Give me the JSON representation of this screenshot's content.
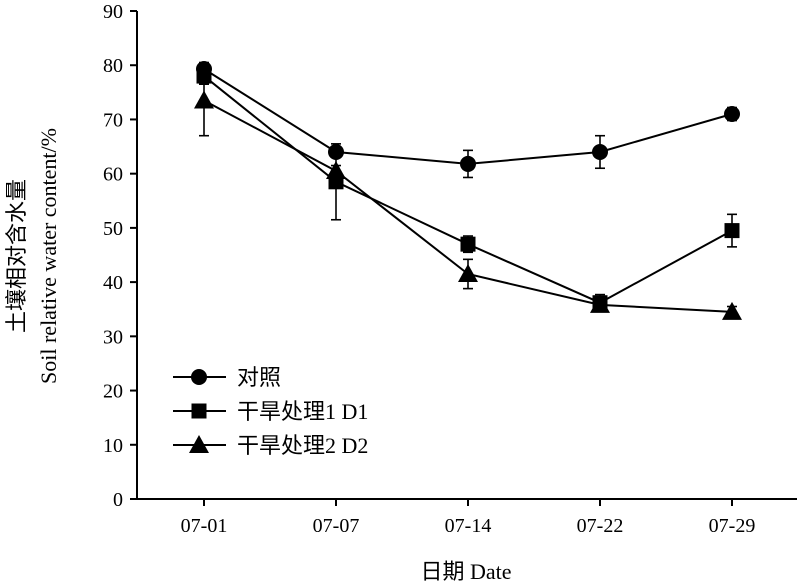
{
  "chart_data": {
    "type": "line",
    "xlabel": "日期 Date",
    "ylabel_line1": "土壤相对含水量",
    "ylabel_line2": "Soil relative water content/%",
    "ylim": [
      0,
      90
    ],
    "yticks": [
      0,
      10,
      20,
      30,
      40,
      50,
      60,
      70,
      80,
      90
    ],
    "categories": [
      "07-01",
      "07-07",
      "07-14",
      "07-22",
      "07-29"
    ],
    "grid": false,
    "legend_position": "bottom-left",
    "series": [
      {
        "name": "对照",
        "marker": "circle",
        "values": [
          79.3,
          64.0,
          61.8,
          64.0,
          71.0
        ],
        "errors": [
          1.2,
          1.0,
          2.5,
          3.0,
          1.2
        ]
      },
      {
        "name": "干旱处理1  D1",
        "marker": "square",
        "values": [
          78.0,
          58.5,
          47.0,
          36.2,
          49.5
        ],
        "errors": [
          1.5,
          7.0,
          1.5,
          1.5,
          3.0
        ]
      },
      {
        "name": "干旱处理2  D2",
        "marker": "triangle",
        "values": [
          73.5,
          60.5,
          41.5,
          35.8,
          34.5
        ],
        "errors": [
          6.5,
          1.0,
          2.7,
          1.0,
          1.0
        ]
      }
    ]
  }
}
